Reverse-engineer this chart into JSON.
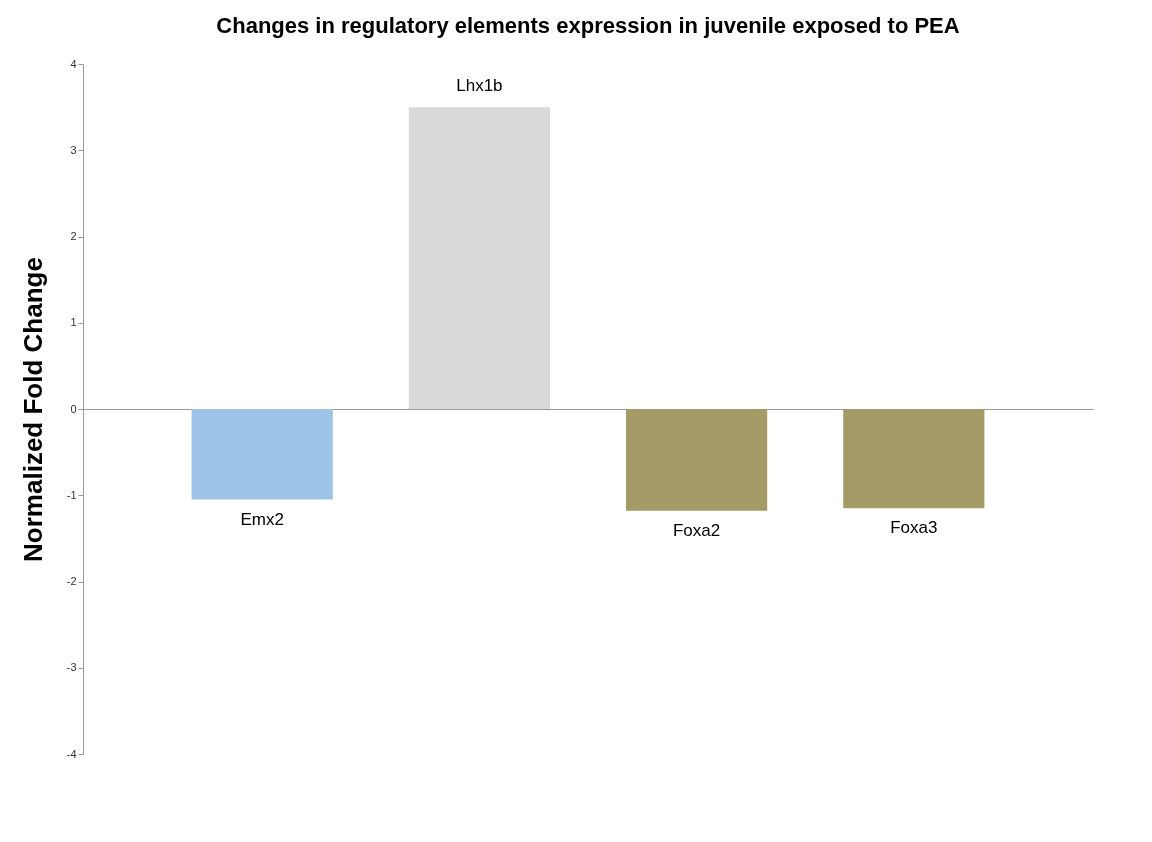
{
  "chart_data": {
    "type": "bar",
    "title": "Changes in regulatory elements expression in juvenile exposed to PEA",
    "ylabel": "Normalized  Fold Change",
    "categories": [
      "Emx2",
      "Lhx1b",
      "Foxa2",
      "Foxa3"
    ],
    "values": [
      -1.05,
      3.5,
      -1.18,
      -1.15
    ],
    "colors": [
      "#9dc3e6",
      "#d9d9d9",
      "#a59b66",
      "#a59b66"
    ],
    "ylim": [
      -4,
      4
    ],
    "yticks": [
      -4,
      -3,
      -2,
      -1,
      0,
      1,
      2,
      3,
      4
    ],
    "legend": false
  }
}
